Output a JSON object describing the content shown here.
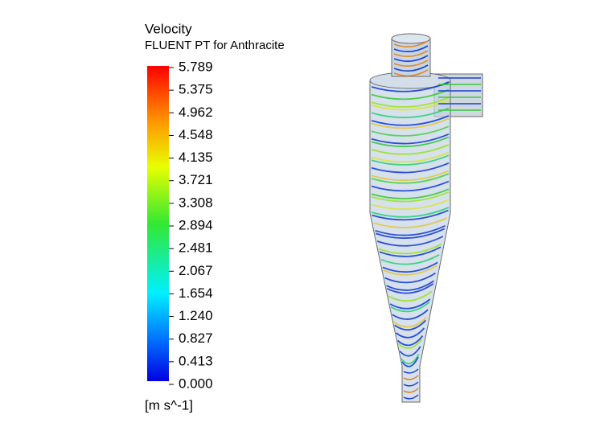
{
  "legend": {
    "title": "Velocity",
    "subtitle": "FLUENT PT for Anthracite",
    "ticks": [
      "5.789",
      "5.375",
      "4.962",
      "4.548",
      "4.135",
      "3.721",
      "3.308",
      "2.894",
      "2.481",
      "2.067",
      "1.654",
      "1.240",
      "0.827",
      "0.413",
      "0.000"
    ],
    "unit": "[m s^-1]"
  }
}
